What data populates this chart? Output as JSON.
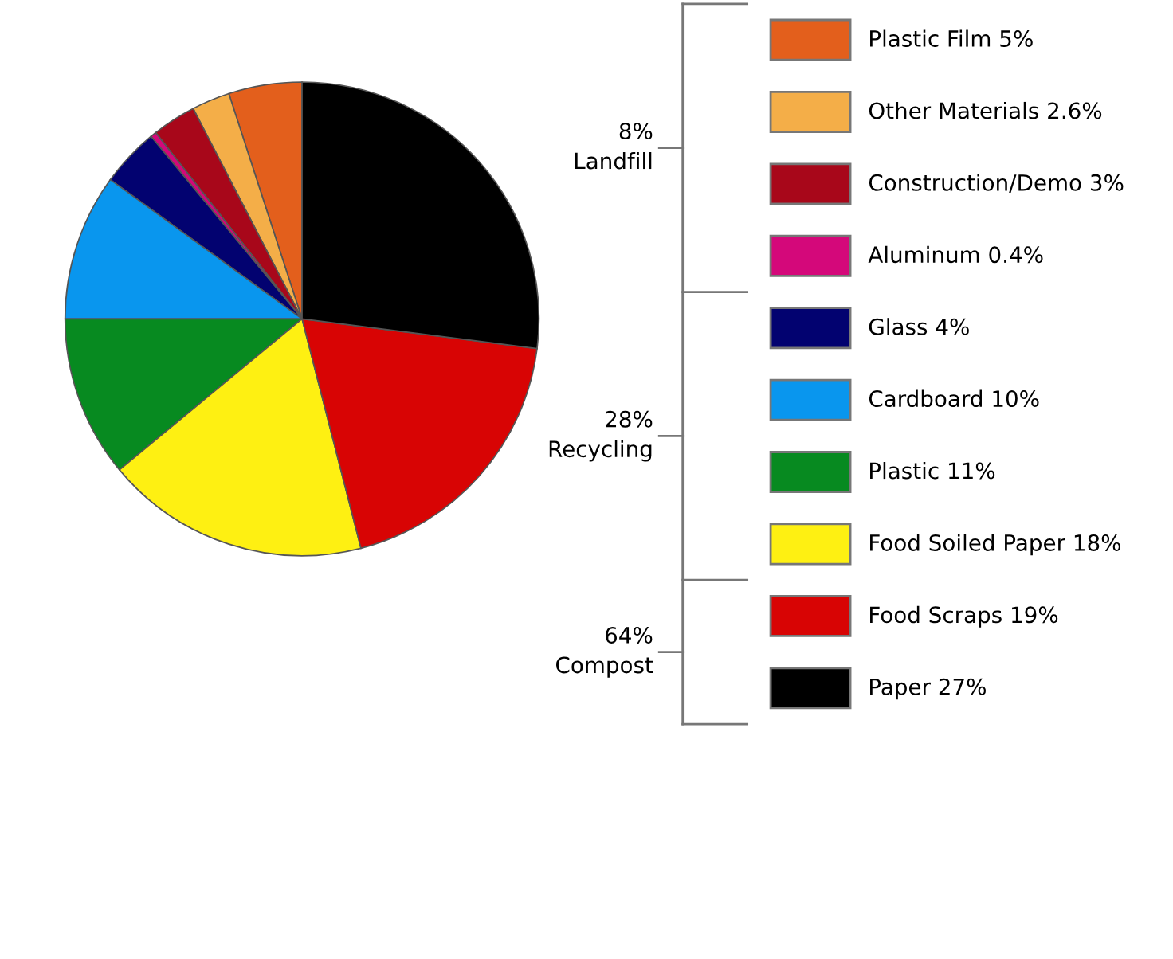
{
  "chart_data": {
    "type": "pie",
    "categories": [
      "Plastic Film",
      "Other Materials",
      "Construction/Demo",
      "Aluminum",
      "Glass",
      "Cardboard",
      "Plastic",
      "Food Soiled Paper",
      "Food Scraps",
      "Paper"
    ],
    "values": [
      5,
      2.6,
      3,
      0.4,
      4,
      10,
      11,
      18,
      19,
      27
    ],
    "value_labels": [
      "5%",
      "2.6%",
      "3%",
      "0.4%",
      "4%",
      "10%",
      "11%",
      "18%",
      "19%",
      "27%"
    ],
    "colors": [
      "#e35f1c",
      "#f4ae48",
      "#a8071a",
      "#d4087a",
      "#020270",
      "#0996ee",
      "#078a20",
      "#fef012",
      "#d80404",
      "#000000"
    ],
    "legend": "right",
    "annotations": [
      "8%\nLandfill",
      "28%\nRecycling",
      "64%\nCompost"
    ]
  }
}
